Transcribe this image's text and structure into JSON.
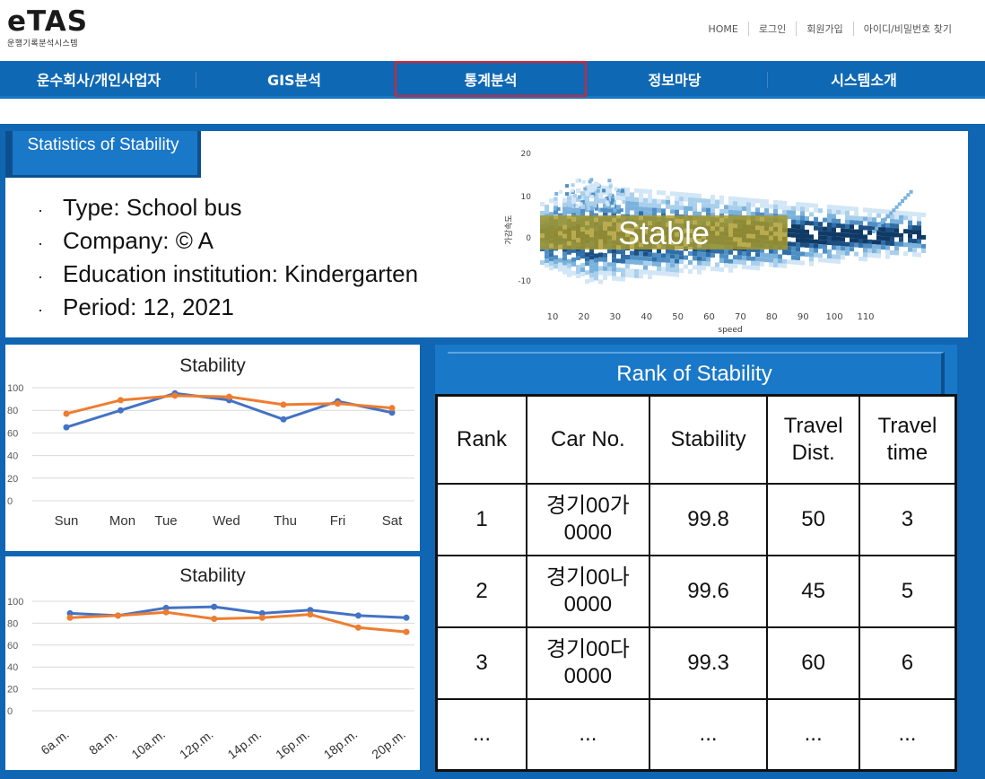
{
  "header": {
    "logo_title": "eTAS",
    "logo_subtitle": "운행기록분석시스템",
    "links": [
      "HOME",
      "로그인",
      "회원가입",
      "아이디/비밀번호 찾기"
    ]
  },
  "nav": {
    "items": [
      "운수회사/개인사업자",
      "GIS분석",
      "통계분석",
      "정보마당",
      "시스템소개"
    ],
    "active": "통계분석"
  },
  "stats": {
    "banner": "Statistics of Stability",
    "info": [
      "Type: School bus",
      "Company: © A",
      "Education institution:  Kindergarten",
      "Period: 12, 2021"
    ]
  },
  "density_plot": {
    "overlay_label": "Stable",
    "x_label": "speed",
    "y_label": "가감속도",
    "x_ticks": [
      "10",
      "20",
      "30",
      "40",
      "50",
      "60",
      "70",
      "80",
      "90",
      "100",
      "110"
    ],
    "y_ticks": [
      "20",
      "10",
      "0",
      "-10"
    ]
  },
  "chart_data": [
    {
      "type": "line",
      "title": "Stability",
      "categories": [
        "Sun",
        "Mon",
        "Tue",
        "Wed",
        "Thu",
        "Fri",
        "Sat"
      ],
      "y_ticks": [
        "100",
        "80",
        "60",
        "40",
        "20",
        "0"
      ],
      "ylim": [
        0,
        100
      ],
      "series": [
        {
          "color": "#4472c4",
          "values": [
            65,
            80,
            95,
            89,
            72,
            88,
            78
          ]
        },
        {
          "color": "#ed7d31",
          "values": [
            77,
            89,
            93,
            92,
            85,
            86,
            82
          ]
        }
      ]
    },
    {
      "type": "line",
      "title": "Stability",
      "categories": [
        "6a.m.",
        "8a.m.",
        "10a.m.",
        "12p.m.",
        "14p.m.",
        "16p.m.",
        "18p.m.",
        "20p.m."
      ],
      "y_ticks": [
        "100",
        "80",
        "60",
        "40",
        "20",
        "0"
      ],
      "ylim": [
        0,
        100
      ],
      "series": [
        {
          "color": "#4472c4",
          "values": [
            89,
            87,
            94,
            95,
            89,
            92,
            87,
            85
          ]
        },
        {
          "color": "#ed7d31",
          "values": [
            85,
            87,
            90,
            84,
            85,
            88,
            76,
            72
          ]
        }
      ]
    }
  ],
  "rank": {
    "title": "Rank of Stability",
    "headers": [
      "Rank",
      "Car No.",
      "Stability",
      "Travel Dist.",
      "Travel time"
    ],
    "rows": [
      [
        "1",
        "경기00가 0000",
        "99.8",
        "50",
        "3"
      ],
      [
        "2",
        "경기00나 0000",
        "99.6",
        "45",
        "5"
      ],
      [
        "3",
        "경기00다 0000",
        "99.3",
        "60",
        "6"
      ],
      [
        "...",
        "...",
        "...",
        "...",
        "..."
      ]
    ]
  }
}
